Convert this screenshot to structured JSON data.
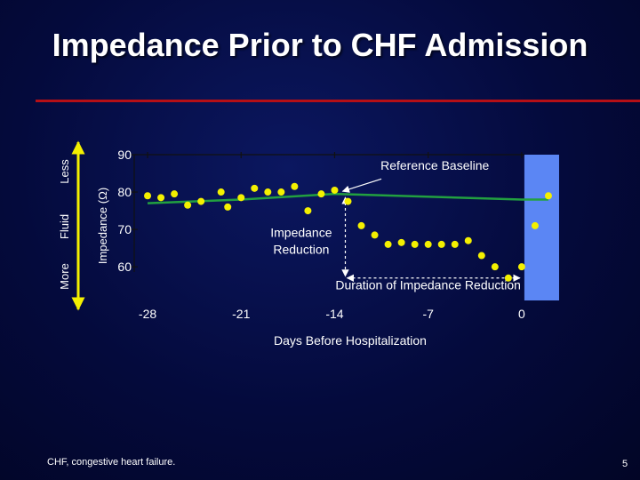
{
  "slide": {
    "title": "Impedance Prior to CHF Admission",
    "footnote": "CHF, congestive heart failure.",
    "page_number": "5"
  },
  "chart_data": {
    "type": "scatter",
    "title": "Impedance Prior to CHF Admission",
    "xlabel": "Days Before Hospitalization",
    "ylabel": "Impedance (Ω)",
    "xlim": [
      -29,
      3.2
    ],
    "ylim": [
      51,
      90
    ],
    "x_ticks": [
      -28,
      -21,
      -14,
      -7,
      0
    ],
    "x_tick_labels": [
      "-28",
      "-21",
      "-14",
      "-7",
      "0"
    ],
    "y_ticks": [
      60,
      70,
      80,
      90
    ],
    "y_tick_labels": [
      "60",
      "70",
      "80",
      "90"
    ],
    "grid": false,
    "series": [
      {
        "name": "",
        "color": "#f4f000",
        "x": [
          -28,
          -27,
          -26,
          -25,
          -24,
          -22.5,
          -22,
          -21,
          -20,
          -19,
          -18,
          -17,
          -16,
          -15,
          -14,
          -13,
          -12,
          -11,
          -10,
          -9,
          -8,
          -7,
          -6,
          -5,
          -4,
          -3,
          -2,
          -1,
          0,
          1,
          2
        ],
        "y": [
          79,
          78.5,
          79.5,
          76.5,
          77.5,
          80,
          76,
          78.5,
          81,
          80,
          80,
          81.5,
          75,
          79.5,
          80.5,
          77.5,
          71,
          68.5,
          66,
          66.5,
          66,
          66,
          66,
          66,
          67,
          63,
          60,
          57,
          60,
          71,
          79
        ]
      },
      {
        "name": "Reference Baseline",
        "color": "#22a040",
        "type": "line",
        "x": [
          -28,
          -21,
          -14,
          0,
          2
        ],
        "y": [
          77,
          78,
          79.5,
          78,
          78
        ]
      }
    ],
    "shaded_region": {
      "x": [
        0.2,
        2.8
      ],
      "color": "#5b86f4"
    },
    "annotations": [
      {
        "text": "Reference Baseline",
        "x": -6.5,
        "y": 86
      },
      {
        "text": "Impedance",
        "x": -16.5,
        "y": 68
      },
      {
        "text": "Reduction",
        "x": -16.5,
        "y": 63.5
      },
      {
        "text": "Duration of Impedance Reduction",
        "x": -7,
        "y": 54
      }
    ],
    "impedance_reduction_range": {
      "from": 80,
      "to": 57,
      "at_x": -13.2
    },
    "duration_range": {
      "from": -13.2,
      "to": 0,
      "at_y": 57
    },
    "fluid_scale": {
      "label": "Fluid",
      "top_label": "Less",
      "bottom_label": "More"
    }
  }
}
